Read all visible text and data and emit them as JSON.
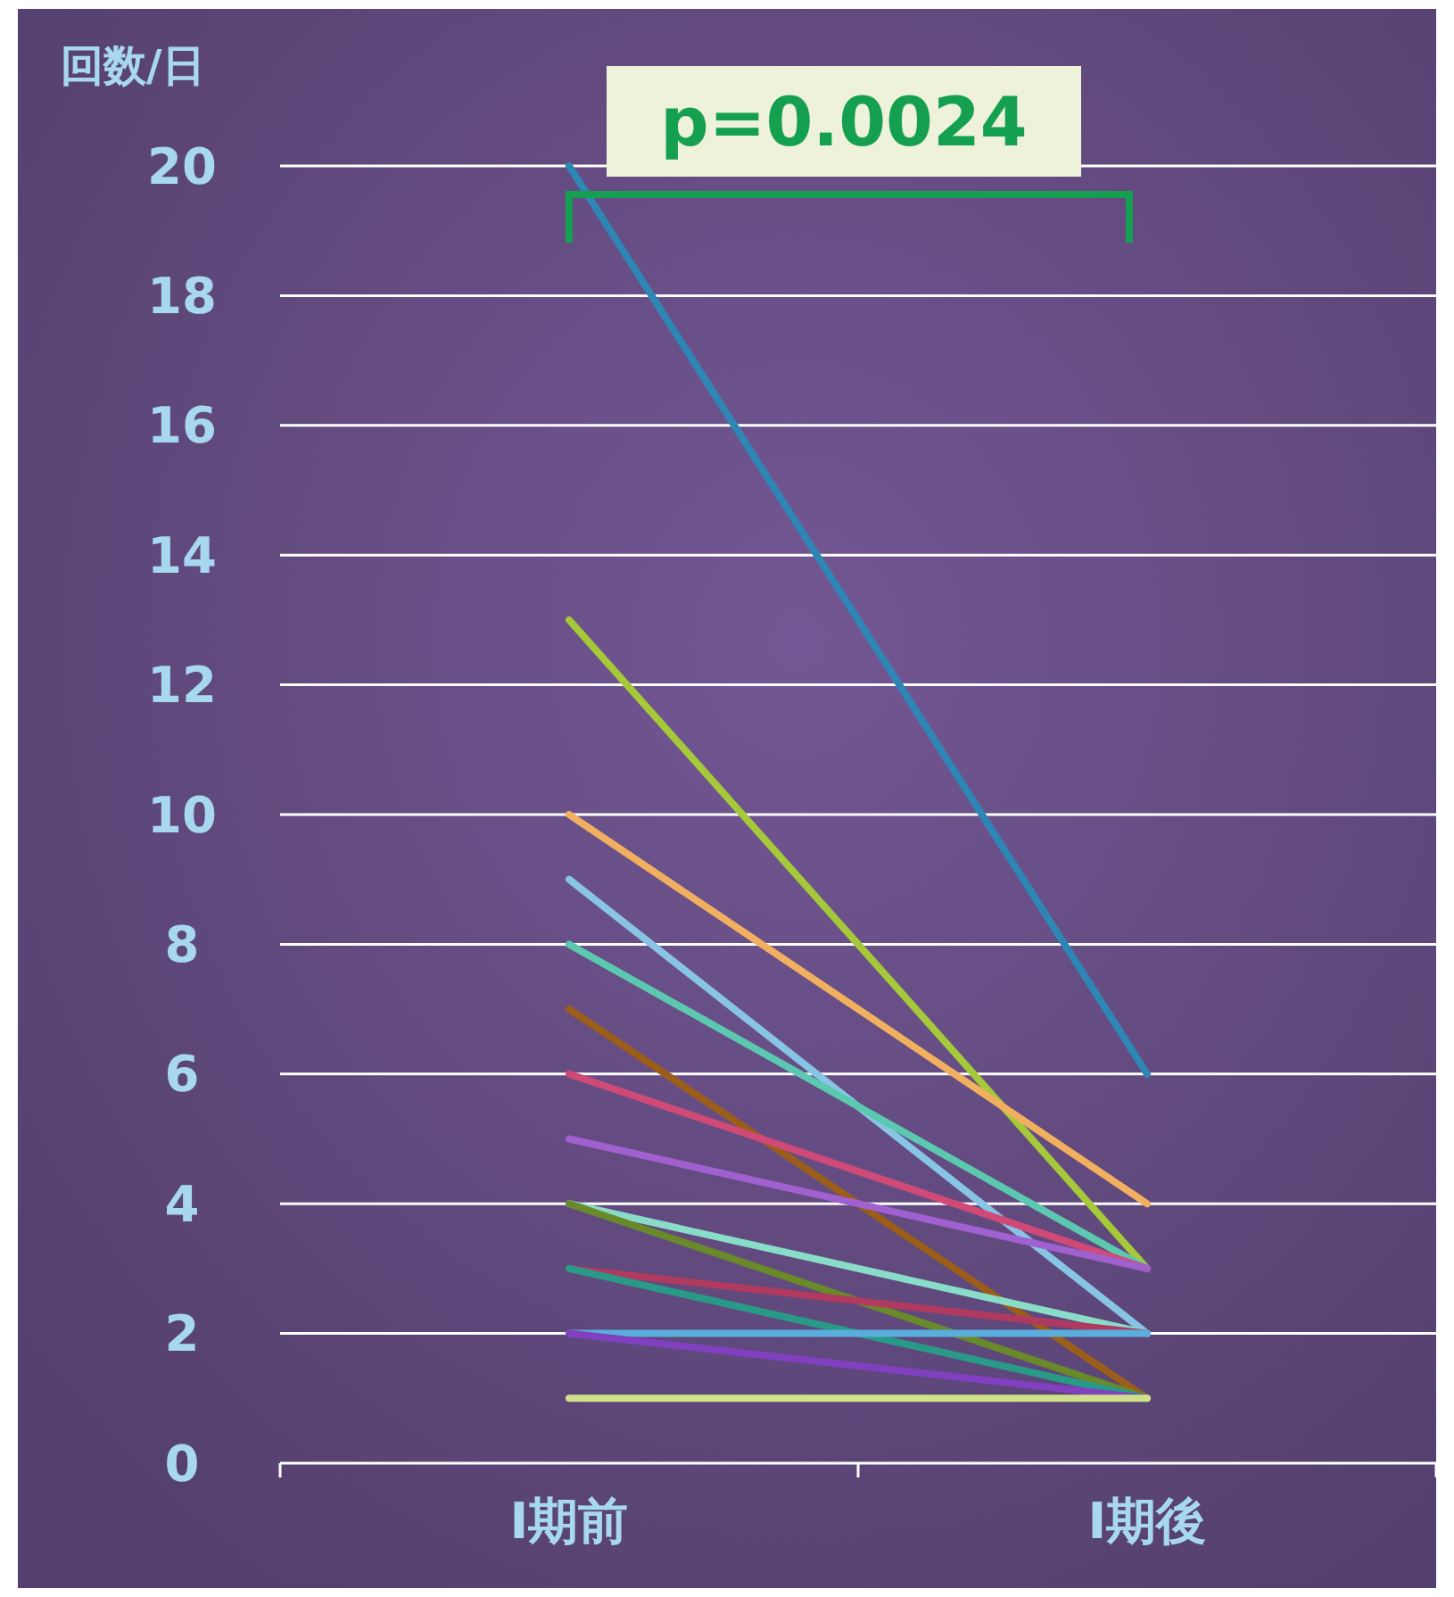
{
  "chart_data": {
    "type": "line",
    "ylabel": "回数/日",
    "categories": [
      "Ⅰ期前",
      "Ⅰ期後"
    ],
    "series": [
      {
        "color": "#2e86b5",
        "values": [
          20,
          6
        ]
      },
      {
        "color": "#a6c93a",
        "values": [
          13,
          3
        ]
      },
      {
        "color": "#f0b060",
        "values": [
          10,
          4
        ]
      },
      {
        "color": "#88c4e4",
        "values": [
          9,
          2
        ]
      },
      {
        "color": "#5cc8b0",
        "values": [
          8,
          3
        ]
      },
      {
        "color": "#9a5e1a",
        "values": [
          7,
          1
        ]
      },
      {
        "color": "#d04a78",
        "values": [
          6,
          3
        ]
      },
      {
        "color": "#a060d0",
        "values": [
          5,
          3
        ]
      },
      {
        "color": "#88dcc8",
        "values": [
          4,
          2
        ]
      },
      {
        "color": "#6a8a2a",
        "values": [
          4,
          1
        ]
      },
      {
        "color": "#b03a60",
        "values": [
          3,
          2
        ]
      },
      {
        "color": "#2a9a88",
        "values": [
          3,
          1
        ]
      },
      {
        "color": "#5aaedc",
        "values": [
          2,
          2
        ]
      },
      {
        "color": "#8040c0",
        "values": [
          2,
          1
        ]
      },
      {
        "color": "#d0e08a",
        "values": [
          1,
          1
        ]
      }
    ],
    "ylim": [
      0,
      20
    ],
    "yticks": [
      0,
      2,
      4,
      6,
      8,
      10,
      12,
      14,
      16,
      18,
      20
    ],
    "grid": "y",
    "marker": "none",
    "line_style": "solid",
    "annotations": [
      "p=0.0024"
    ]
  }
}
